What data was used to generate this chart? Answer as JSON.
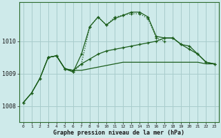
{
  "title": "Graphe pression niveau de la mer (hPa)",
  "background_color": "#ceeaea",
  "grid_color": "#a8cccc",
  "line_color": "#1a5c1a",
  "x_labels": [
    "0",
    "1",
    "2",
    "3",
    "4",
    "5",
    "6",
    "7",
    "8",
    "9",
    "10",
    "11",
    "12",
    "13",
    "14",
    "15",
    "16",
    "17",
    "18",
    "19",
    "20",
    "21",
    "22",
    "23"
  ],
  "y_ticks": [
    1008,
    1009,
    1010
  ],
  "ylim": [
    1007.5,
    1011.2
  ],
  "xlim": [
    -0.5,
    23.5
  ],
  "series": {
    "dotted": {
      "x": [
        0,
        1,
        2,
        3,
        4,
        5,
        6,
        7,
        8,
        9,
        10,
        11,
        12,
        13,
        14,
        15,
        16,
        17
      ],
      "y": [
        1008.1,
        1008.4,
        1008.85,
        1009.5,
        1009.55,
        1009.15,
        1009.05,
        1009.3,
        1010.45,
        1010.75,
        1010.5,
        1010.75,
        1010.8,
        1010.85,
        1010.85,
        1010.7,
        1010.1,
        1010.0
      ]
    },
    "dashed_high": {
      "x": [
        3,
        4,
        5,
        6,
        7,
        8,
        9,
        10,
        11,
        12,
        13,
        14,
        15,
        16,
        17,
        18,
        19,
        20,
        21,
        22,
        23
      ],
      "y": [
        1009.5,
        1009.55,
        1009.15,
        1009.05,
        1009.6,
        1010.45,
        1010.75,
        1010.5,
        1010.7,
        1010.8,
        1010.9,
        1010.9,
        1010.75,
        1010.15,
        1010.1,
        1010.1,
        1009.9,
        1009.85,
        1009.6,
        1009.35,
        1009.3
      ]
    },
    "solid_mid": {
      "x": [
        0,
        1,
        2,
        3,
        4,
        5,
        6,
        7,
        8,
        9,
        10,
        11,
        12,
        13,
        14,
        15,
        16,
        17,
        18,
        19,
        20,
        21,
        22,
        23
      ],
      "y": [
        1008.1,
        1008.4,
        1008.85,
        1009.5,
        1009.55,
        1009.15,
        1009.1,
        1009.3,
        1009.45,
        1009.6,
        1009.7,
        1009.75,
        1009.8,
        1009.85,
        1009.9,
        1009.95,
        1010.0,
        1010.1,
        1010.1,
        1009.9,
        1009.75,
        1009.6,
        1009.35,
        1009.3
      ]
    },
    "solid_flat": {
      "x": [
        0,
        1,
        2,
        3,
        4,
        5,
        6,
        7,
        8,
        9,
        10,
        11,
        12,
        13,
        14,
        15,
        16,
        17,
        18,
        19,
        20,
        21,
        22,
        23
      ],
      "y": [
        1008.1,
        1008.4,
        1008.85,
        1009.5,
        1009.55,
        1009.15,
        1009.1,
        1009.1,
        1009.15,
        1009.2,
        1009.25,
        1009.3,
        1009.35,
        1009.35,
        1009.35,
        1009.35,
        1009.35,
        1009.35,
        1009.35,
        1009.35,
        1009.35,
        1009.35,
        1009.3,
        1009.3
      ]
    }
  }
}
